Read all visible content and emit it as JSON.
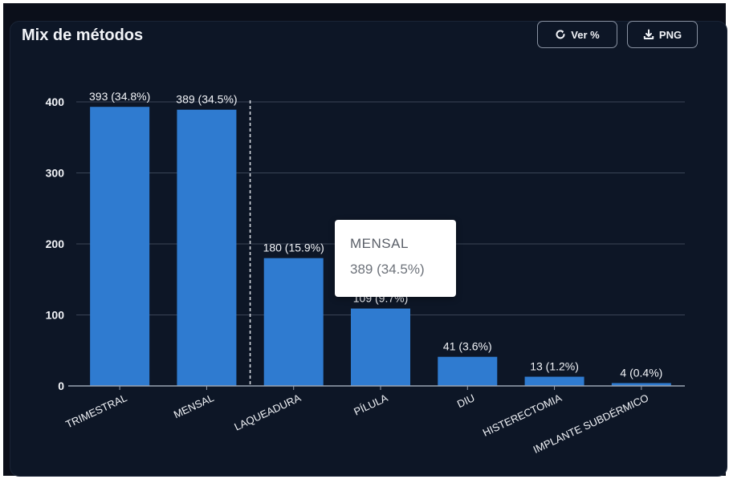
{
  "card": {
    "title": "Mix de métodos",
    "buttons": {
      "percent_label": "Ver %",
      "percent_icon": "refresh-icon",
      "png_label": "PNG",
      "png_icon": "download-icon"
    }
  },
  "tooltip": {
    "title": "MENSAL",
    "value": "389 (34.5%)"
  },
  "chart_data": {
    "type": "bar",
    "title": "Mix de métodos",
    "xlabel": "",
    "ylabel": "",
    "ylim": [
      0,
      400
    ],
    "yticks": [
      0,
      100,
      200,
      300,
      400
    ],
    "grid": true,
    "categories": [
      "TRIMESTRAL",
      "MENSAL",
      "LAQUEADURA",
      "PÍLULA",
      "DIU",
      "HISTERECTOMIA",
      "IMPLANTE SUBDÉRMICO"
    ],
    "values": [
      393,
      389,
      180,
      109,
      41,
      13,
      4
    ],
    "labels": [
      "393 (34.8%)",
      "389 (34.5%)",
      "180 (15.9%)",
      "109 (9.7%)",
      "41 (3.6%)",
      "13 (1.2%)",
      "4 (0.4%)"
    ],
    "hovered_index": 1,
    "colors": {
      "bar": "#2f7bd0",
      "grid": "#3a4456",
      "axis": "#9aa3b2",
      "text": "#f2f4f8",
      "hover_line": "#dfe3ea"
    }
  }
}
